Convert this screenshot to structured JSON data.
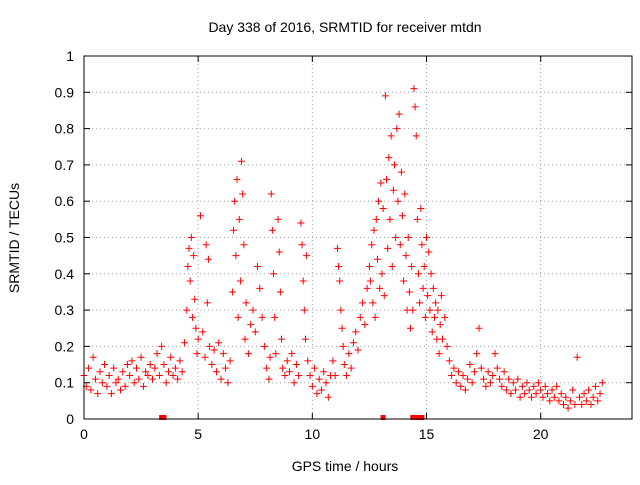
{
  "chart_data": {
    "type": "scatter",
    "title": "Day 338 of 2016, SRMTID for receiver mtdn",
    "xlabel": "GPS time / hours",
    "ylabel": "SRMTID / TECUs",
    "xlim": [
      0,
      24
    ],
    "ylim": [
      0,
      1
    ],
    "xticks": [
      0,
      5,
      10,
      15,
      20
    ],
    "yticks": [
      0,
      0.1,
      0.2,
      0.3,
      0.4,
      0.5,
      0.6,
      0.7,
      0.8,
      0.9,
      1
    ],
    "xtick_labels": [
      "0",
      "5",
      "10",
      "15",
      "20"
    ],
    "ytick_labels": [
      "0",
      "0.1",
      "0.2",
      "0.3",
      "0.4",
      "0.5",
      "0.6",
      "0.7",
      "0.8",
      "0.9",
      "1"
    ],
    "grid": true,
    "color": "#ff0000",
    "marker": "plus",
    "series": [
      {
        "name": "SRMTID",
        "points": [
          [
            0.0,
            0.12
          ],
          [
            0.1,
            0.09
          ],
          [
            0.2,
            0.14
          ],
          [
            0.3,
            0.08
          ],
          [
            0.4,
            0.17
          ],
          [
            0.5,
            0.11
          ],
          [
            0.6,
            0.07
          ],
          [
            0.7,
            0.13
          ],
          [
            0.8,
            0.1
          ],
          [
            0.9,
            0.15
          ],
          [
            1.0,
            0.09
          ],
          [
            1.1,
            0.12
          ],
          [
            1.2,
            0.07
          ],
          [
            1.3,
            0.14
          ],
          [
            1.4,
            0.1
          ],
          [
            1.5,
            0.11
          ],
          [
            1.6,
            0.08
          ],
          [
            1.7,
            0.13
          ],
          [
            1.8,
            0.09
          ],
          [
            1.9,
            0.15
          ],
          [
            2.0,
            0.12
          ],
          [
            2.1,
            0.16
          ],
          [
            2.2,
            0.1
          ],
          [
            2.3,
            0.14
          ],
          [
            2.4,
            0.11
          ],
          [
            2.5,
            0.17
          ],
          [
            2.6,
            0.09
          ],
          [
            2.7,
            0.13
          ],
          [
            2.8,
            0.12
          ],
          [
            2.9,
            0.15
          ],
          [
            3.0,
            0.11
          ],
          [
            3.1,
            0.14
          ],
          [
            3.2,
            0.18
          ],
          [
            3.3,
            0.12
          ],
          [
            3.4,
            0.2
          ],
          [
            3.5,
            0.15
          ],
          [
            3.6,
            0.1
          ],
          [
            3.7,
            0.13
          ],
          [
            3.8,
            0.17
          ],
          [
            3.9,
            0.12
          ],
          [
            4.0,
            0.14
          ],
          [
            4.1,
            0.11
          ],
          [
            4.2,
            0.16
          ],
          [
            4.3,
            0.13
          ],
          [
            4.4,
            0.21
          ],
          [
            4.5,
            0.3
          ],
          [
            4.55,
            0.42
          ],
          [
            4.6,
            0.47
          ],
          [
            4.65,
            0.38
          ],
          [
            4.7,
            0.5
          ],
          [
            4.75,
            0.28
          ],
          [
            4.8,
            0.45
          ],
          [
            4.85,
            0.33
          ],
          [
            4.9,
            0.25
          ],
          [
            4.95,
            0.18
          ],
          [
            5.0,
            0.22
          ],
          [
            5.1,
            0.56
          ],
          [
            5.2,
            0.24
          ],
          [
            5.3,
            0.17
          ],
          [
            5.35,
            0.48
          ],
          [
            5.4,
            0.32
          ],
          [
            5.45,
            0.44
          ],
          [
            5.5,
            0.2
          ],
          [
            5.6,
            0.15
          ],
          [
            5.7,
            0.19
          ],
          [
            5.8,
            0.13
          ],
          [
            5.9,
            0.21
          ],
          [
            6.0,
            0.11
          ],
          [
            6.1,
            0.18
          ],
          [
            6.2,
            0.14
          ],
          [
            6.3,
            0.1
          ],
          [
            6.4,
            0.16
          ],
          [
            6.5,
            0.35
          ],
          [
            6.55,
            0.52
          ],
          [
            6.6,
            0.6
          ],
          [
            6.65,
            0.45
          ],
          [
            6.7,
            0.66
          ],
          [
            6.75,
            0.28
          ],
          [
            6.8,
            0.55
          ],
          [
            6.85,
            0.38
          ],
          [
            6.9,
            0.71
          ],
          [
            6.95,
            0.62
          ],
          [
            7.0,
            0.48
          ],
          [
            7.05,
            0.22
          ],
          [
            7.1,
            0.32
          ],
          [
            7.2,
            0.18
          ],
          [
            7.3,
            0.26
          ],
          [
            7.4,
            0.3
          ],
          [
            7.5,
            0.24
          ],
          [
            7.6,
            0.42
          ],
          [
            7.7,
            0.36
          ],
          [
            7.8,
            0.28
          ],
          [
            7.9,
            0.2
          ],
          [
            8.0,
            0.14
          ],
          [
            8.1,
            0.11
          ],
          [
            8.15,
            0.17
          ],
          [
            8.2,
            0.62
          ],
          [
            8.25,
            0.52
          ],
          [
            8.3,
            0.4
          ],
          [
            8.35,
            0.28
          ],
          [
            8.4,
            0.18
          ],
          [
            8.5,
            0.55
          ],
          [
            8.55,
            0.46
          ],
          [
            8.6,
            0.35
          ],
          [
            8.65,
            0.22
          ],
          [
            8.7,
            0.14
          ],
          [
            8.8,
            0.12
          ],
          [
            8.9,
            0.16
          ],
          [
            9.0,
            0.13
          ],
          [
            9.1,
            0.18
          ],
          [
            9.2,
            0.1
          ],
          [
            9.3,
            0.15
          ],
          [
            9.4,
            0.12
          ],
          [
            9.5,
            0.54
          ],
          [
            9.55,
            0.48
          ],
          [
            9.6,
            0.38
          ],
          [
            9.65,
            0.3
          ],
          [
            9.7,
            0.22
          ],
          [
            9.75,
            0.45
          ],
          [
            9.8,
            0.16
          ],
          [
            9.9,
            0.12
          ],
          [
            10.0,
            0.09
          ],
          [
            10.1,
            0.14
          ],
          [
            10.2,
            0.07
          ],
          [
            10.3,
            0.11
          ],
          [
            10.4,
            0.08
          ],
          [
            10.5,
            0.13
          ],
          [
            10.6,
            0.1
          ],
          [
            10.7,
            0.06
          ],
          [
            10.8,
            0.12
          ],
          [
            10.9,
            0.16
          ],
          [
            11.0,
            0.12
          ],
          [
            11.1,
            0.47
          ],
          [
            11.15,
            0.42
          ],
          [
            11.2,
            0.38
          ],
          [
            11.25,
            0.3
          ],
          [
            11.3,
            0.25
          ],
          [
            11.35,
            0.2
          ],
          [
            11.4,
            0.15
          ],
          [
            11.5,
            0.12
          ],
          [
            11.6,
            0.18
          ],
          [
            11.7,
            0.14
          ],
          [
            11.8,
            0.21
          ],
          [
            11.9,
            0.24
          ],
          [
            12.0,
            0.19
          ],
          [
            12.1,
            0.28
          ],
          [
            12.2,
            0.32
          ],
          [
            12.3,
            0.26
          ],
          [
            12.4,
            0.36
          ],
          [
            12.5,
            0.42
          ],
          [
            12.55,
            0.38
          ],
          [
            12.6,
            0.48
          ],
          [
            12.65,
            0.32
          ],
          [
            12.7,
            0.52
          ],
          [
            12.75,
            0.28
          ],
          [
            12.8,
            0.55
          ],
          [
            12.85,
            0.44
          ],
          [
            12.9,
            0.6
          ],
          [
            12.95,
            0.36
          ],
          [
            13.0,
            0.65
          ],
          [
            13.05,
            0.4
          ],
          [
            13.1,
            0.58
          ],
          [
            13.15,
            0.34
          ],
          [
            13.2,
            0.89
          ],
          [
            13.25,
            0.66
          ],
          [
            13.3,
            0.47
          ],
          [
            13.35,
            0.72
          ],
          [
            13.4,
            0.55
          ],
          [
            13.45,
            0.78
          ],
          [
            13.5,
            0.42
          ],
          [
            13.55,
            0.63
          ],
          [
            13.6,
            0.7
          ],
          [
            13.65,
            0.5
          ],
          [
            13.7,
            0.8
          ],
          [
            13.75,
            0.6
          ],
          [
            13.8,
            0.84
          ],
          [
            13.85,
            0.48
          ],
          [
            13.9,
            0.68
          ],
          [
            13.95,
            0.56
          ],
          [
            14.0,
            0.38
          ],
          [
            14.05,
            0.62
          ],
          [
            14.1,
            0.45
          ],
          [
            14.15,
            0.3
          ],
          [
            14.2,
            0.5
          ],
          [
            14.25,
            0.35
          ],
          [
            14.3,
            0.25
          ],
          [
            14.35,
            0.42
          ],
          [
            14.4,
            0.3
          ],
          [
            14.45,
            0.91
          ],
          [
            14.5,
            0.86
          ],
          [
            14.55,
            0.78
          ],
          [
            14.6,
            0.55
          ],
          [
            14.65,
            0.4
          ],
          [
            14.7,
            0.32
          ],
          [
            14.75,
            0.58
          ],
          [
            14.8,
            0.48
          ],
          [
            14.85,
            0.36
          ],
          [
            14.9,
            0.42
          ],
          [
            14.95,
            0.28
          ],
          [
            15.0,
            0.5
          ],
          [
            15.05,
            0.34
          ],
          [
            15.1,
            0.46
          ],
          [
            15.15,
            0.3
          ],
          [
            15.2,
            0.4
          ],
          [
            15.25,
            0.24
          ],
          [
            15.3,
            0.36
          ],
          [
            15.35,
            0.28
          ],
          [
            15.4,
            0.32
          ],
          [
            15.45,
            0.22
          ],
          [
            15.5,
            0.3
          ],
          [
            15.55,
            0.18
          ],
          [
            15.6,
            0.26
          ],
          [
            15.65,
            0.34
          ],
          [
            15.7,
            0.22
          ],
          [
            15.8,
            0.28
          ],
          [
            15.9,
            0.2
          ],
          [
            16.0,
            0.16
          ],
          [
            16.1,
            0.12
          ],
          [
            16.2,
            0.14
          ],
          [
            16.3,
            0.1
          ],
          [
            16.4,
            0.13
          ],
          [
            16.5,
            0.09
          ],
          [
            16.6,
            0.12
          ],
          [
            16.7,
            0.08
          ],
          [
            16.8,
            0.11
          ],
          [
            16.9,
            0.15
          ],
          [
            17.0,
            0.1
          ],
          [
            17.1,
            0.13
          ],
          [
            17.2,
            0.18
          ],
          [
            17.3,
            0.25
          ],
          [
            17.4,
            0.14
          ],
          [
            17.5,
            0.11
          ],
          [
            17.6,
            0.09
          ],
          [
            17.7,
            0.13
          ],
          [
            17.8,
            0.1
          ],
          [
            17.9,
            0.12
          ],
          [
            18.0,
            0.18
          ],
          [
            18.1,
            0.14
          ],
          [
            18.2,
            0.11
          ],
          [
            18.3,
            0.09
          ],
          [
            18.4,
            0.13
          ],
          [
            18.5,
            0.08
          ],
          [
            18.6,
            0.11
          ],
          [
            18.7,
            0.07
          ],
          [
            18.8,
            0.1
          ],
          [
            18.9,
            0.08
          ],
          [
            19.0,
            0.11
          ],
          [
            19.1,
            0.06
          ],
          [
            19.2,
            0.09
          ],
          [
            19.3,
            0.07
          ],
          [
            19.4,
            0.1
          ],
          [
            19.5,
            0.08
          ],
          [
            19.6,
            0.06
          ],
          [
            19.7,
            0.09
          ],
          [
            19.8,
            0.07
          ],
          [
            19.9,
            0.1
          ],
          [
            20.0,
            0.08
          ],
          [
            20.1,
            0.06
          ],
          [
            20.2,
            0.09
          ],
          [
            20.3,
            0.07
          ],
          [
            20.4,
            0.05
          ],
          [
            20.5,
            0.08
          ],
          [
            20.6,
            0.06
          ],
          [
            20.7,
            0.09
          ],
          [
            20.8,
            0.05
          ],
          [
            20.9,
            0.07
          ],
          [
            21.0,
            0.04
          ],
          [
            21.1,
            0.06
          ],
          [
            21.2,
            0.03
          ],
          [
            21.3,
            0.05
          ],
          [
            21.4,
            0.08
          ],
          [
            21.5,
            0.04
          ],
          [
            21.6,
            0.17
          ],
          [
            21.7,
            0.06
          ],
          [
            21.8,
            0.04
          ],
          [
            21.9,
            0.07
          ],
          [
            22.0,
            0.05
          ],
          [
            22.1,
            0.08
          ],
          [
            22.2,
            0.04
          ],
          [
            22.3,
            0.06
          ],
          [
            22.4,
            0.09
          ],
          [
            22.5,
            0.05
          ],
          [
            22.6,
            0.07
          ],
          [
            22.7,
            0.1
          ]
        ]
      }
    ],
    "axis_markers": [
      3.4,
      3.5,
      13.1,
      14.4,
      14.5,
      14.7,
      14.8
    ]
  }
}
